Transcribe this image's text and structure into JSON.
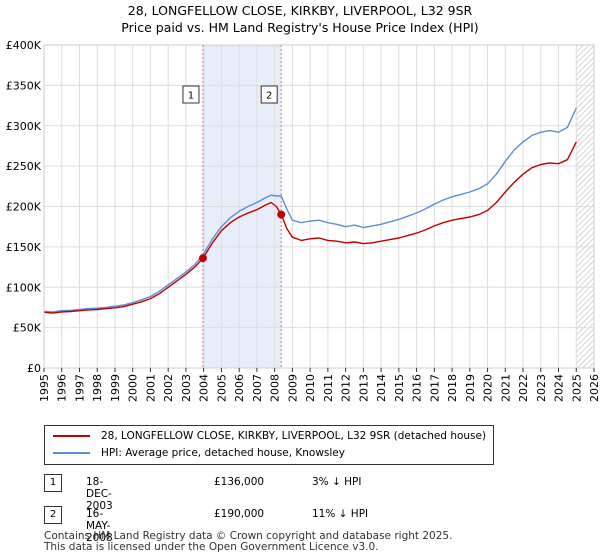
{
  "title": "28, LONGFELLOW CLOSE, KIRKBY, LIVERPOOL, L32 9SR",
  "subtitle": "Price paid vs. HM Land Registry's House Price Index (HPI)",
  "colors": {
    "property": "#c00000",
    "hpi": "#5b8fd4",
    "shade": "#e8eef9",
    "marker_line": "#d07080"
  },
  "chart_data": {
    "type": "line",
    "xlim": [
      1995,
      2026
    ],
    "ylim": [
      0,
      400000
    ],
    "x_ticks": [
      "1995",
      "1996",
      "1997",
      "1998",
      "1999",
      "2000",
      "2001",
      "2002",
      "2003",
      "2004",
      "2005",
      "2006",
      "2007",
      "2008",
      "2009",
      "2010",
      "2011",
      "2012",
      "2013",
      "2014",
      "2015",
      "2016",
      "2017",
      "2018",
      "2019",
      "2020",
      "2021",
      "2022",
      "2023",
      "2024",
      "2025",
      "2026"
    ],
    "y_ticks": [
      "£0",
      "£50K",
      "£100K",
      "£150K",
      "£200K",
      "£250K",
      "£300K",
      "£350K",
      "£400K"
    ],
    "y_tick_values": [
      0,
      50000,
      100000,
      150000,
      200000,
      250000,
      300000,
      350000,
      400000
    ],
    "series": [
      {
        "name": "28, LONGFELLOW CLOSE, KIRKBY, LIVERPOOL, L32 9SR (detached house)",
        "points": [
          [
            1995.0,
            69000
          ],
          [
            1995.5,
            68000
          ],
          [
            1996.0,
            69500
          ],
          [
            1996.5,
            70000
          ],
          [
            1997.0,
            71000
          ],
          [
            1997.5,
            72000
          ],
          [
            1998.0,
            72500
          ],
          [
            1998.5,
            73500
          ],
          [
            1999.0,
            74500
          ],
          [
            1999.5,
            76000
          ],
          [
            2000.0,
            79000
          ],
          [
            2000.5,
            82000
          ],
          [
            2001.0,
            86000
          ],
          [
            2001.5,
            92000
          ],
          [
            2002.0,
            100000
          ],
          [
            2002.5,
            108000
          ],
          [
            2003.0,
            116000
          ],
          [
            2003.5,
            125000
          ],
          [
            2003.96,
            136000
          ],
          [
            2004.5,
            155000
          ],
          [
            2005.0,
            170000
          ],
          [
            2005.5,
            180000
          ],
          [
            2006.0,
            187000
          ],
          [
            2006.5,
            192000
          ],
          [
            2007.0,
            196000
          ],
          [
            2007.5,
            202000
          ],
          [
            2007.8,
            205000
          ],
          [
            2008.1,
            200000
          ],
          [
            2008.37,
            190000
          ],
          [
            2008.7,
            172000
          ],
          [
            2009.0,
            162000
          ],
          [
            2009.5,
            158000
          ],
          [
            2010.0,
            160000
          ],
          [
            2010.5,
            161000
          ],
          [
            2011.0,
            158000
          ],
          [
            2011.5,
            157000
          ],
          [
            2012.0,
            155000
          ],
          [
            2012.5,
            156000
          ],
          [
            2013.0,
            154000
          ],
          [
            2013.5,
            155000
          ],
          [
            2014.0,
            157000
          ],
          [
            2014.5,
            159000
          ],
          [
            2015.0,
            161000
          ],
          [
            2015.5,
            164000
          ],
          [
            2016.0,
            167000
          ],
          [
            2016.5,
            171000
          ],
          [
            2017.0,
            176000
          ],
          [
            2017.5,
            180000
          ],
          [
            2018.0,
            183000
          ],
          [
            2018.5,
            185000
          ],
          [
            2019.0,
            187000
          ],
          [
            2019.5,
            190000
          ],
          [
            2020.0,
            195000
          ],
          [
            2020.5,
            205000
          ],
          [
            2021.0,
            218000
          ],
          [
            2021.5,
            230000
          ],
          [
            2022.0,
            240000
          ],
          [
            2022.5,
            248000
          ],
          [
            2023.0,
            252000
          ],
          [
            2023.5,
            254000
          ],
          [
            2024.0,
            253000
          ],
          [
            2024.5,
            258000
          ],
          [
            2025.0,
            280000
          ]
        ]
      },
      {
        "name": "HPI: Average price, detached house, Knowsley",
        "points": [
          [
            1995.0,
            70000
          ],
          [
            1995.5,
            69500
          ],
          [
            1996.0,
            71000
          ],
          [
            1996.5,
            71500
          ],
          [
            1997.0,
            72500
          ],
          [
            1997.5,
            73500
          ],
          [
            1998.0,
            74000
          ],
          [
            1998.5,
            75000
          ],
          [
            1999.0,
            76500
          ],
          [
            1999.5,
            78000
          ],
          [
            2000.0,
            81000
          ],
          [
            2000.5,
            84500
          ],
          [
            2001.0,
            88500
          ],
          [
            2001.5,
            95000
          ],
          [
            2002.0,
            103000
          ],
          [
            2002.5,
            111000
          ],
          [
            2003.0,
            119000
          ],
          [
            2003.5,
            128000
          ],
          [
            2003.96,
            140000
          ],
          [
            2004.5,
            160000
          ],
          [
            2005.0,
            175000
          ],
          [
            2005.5,
            186000
          ],
          [
            2006.0,
            194000
          ],
          [
            2006.5,
            200000
          ],
          [
            2007.0,
            205000
          ],
          [
            2007.5,
            211000
          ],
          [
            2007.8,
            214000
          ],
          [
            2008.1,
            213000
          ],
          [
            2008.37,
            213000
          ],
          [
            2008.7,
            196000
          ],
          [
            2009.0,
            183000
          ],
          [
            2009.5,
            180000
          ],
          [
            2010.0,
            182000
          ],
          [
            2010.5,
            183000
          ],
          [
            2011.0,
            180000
          ],
          [
            2011.5,
            178000
          ],
          [
            2012.0,
            175000
          ],
          [
            2012.5,
            177000
          ],
          [
            2013.0,
            174000
          ],
          [
            2013.5,
            176000
          ],
          [
            2014.0,
            178000
          ],
          [
            2014.5,
            181000
          ],
          [
            2015.0,
            184000
          ],
          [
            2015.5,
            188000
          ],
          [
            2016.0,
            192000
          ],
          [
            2016.5,
            197000
          ],
          [
            2017.0,
            203000
          ],
          [
            2017.5,
            208000
          ],
          [
            2018.0,
            212000
          ],
          [
            2018.5,
            215000
          ],
          [
            2019.0,
            218000
          ],
          [
            2019.5,
            222000
          ],
          [
            2020.0,
            228000
          ],
          [
            2020.5,
            240000
          ],
          [
            2021.0,
            256000
          ],
          [
            2021.5,
            270000
          ],
          [
            2022.0,
            280000
          ],
          [
            2022.5,
            288000
          ],
          [
            2023.0,
            292000
          ],
          [
            2023.5,
            294000
          ],
          [
            2024.0,
            292000
          ],
          [
            2024.5,
            298000
          ],
          [
            2025.0,
            322000
          ]
        ]
      }
    ],
    "events": [
      {
        "label": "1",
        "x": 2003.96,
        "price": 136000
      },
      {
        "label": "2",
        "x": 2008.37,
        "price": 190000
      }
    ],
    "shaded_range": [
      2003.96,
      2008.37
    ],
    "hatched_from": 2025.0
  },
  "legend": {
    "property": "28, LONGFELLOW CLOSE, KIRKBY, LIVERPOOL, L32 9SR (detached house)",
    "hpi": "HPI: Average price, detached house, Knowsley"
  },
  "transactions": [
    {
      "num": "1",
      "date": "18-DEC-2003",
      "price": "£136,000",
      "hpi": "3% ↓ HPI"
    },
    {
      "num": "2",
      "date": "16-MAY-2008",
      "price": "£190,000",
      "hpi": "11% ↓ HPI"
    }
  ],
  "footer": {
    "line1": "Contains HM Land Registry data © Crown copyright and database right 2025.",
    "line2": "This data is licensed under the Open Government Licence v3.0."
  }
}
